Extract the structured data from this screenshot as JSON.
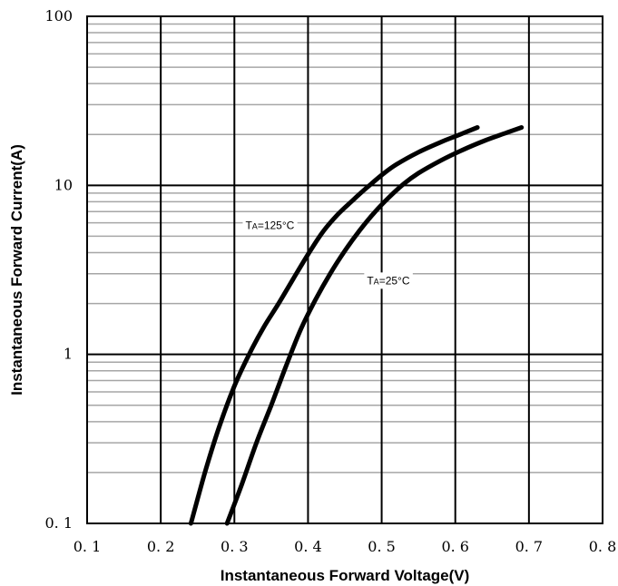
{
  "chart_data": {
    "type": "line",
    "title": "",
    "xlabel": "Instantaneous Forward Voltage(V)",
    "ylabel": "Instantaneous Forward Current(A)",
    "xlim": [
      0.1,
      0.8
    ],
    "ylim": [
      0.1,
      100
    ],
    "y_scale": "log",
    "grid": true,
    "x_tick_labels": [
      "0. 1",
      "0. 2",
      "0. 3",
      "0. 4",
      "0. 5",
      "0. 6",
      "0. 7",
      "0. 8"
    ],
    "x_ticks": [
      0.1,
      0.2,
      0.3,
      0.4,
      0.5,
      0.6,
      0.7,
      0.8
    ],
    "y_tick_labels": [
      "0. 1",
      "1",
      "10",
      "100"
    ],
    "y_ticks": [
      0.1,
      1,
      10,
      100
    ],
    "series": [
      {
        "name": "TA=125°C",
        "label_main": "T",
        "label_sub": "A",
        "label_rest": "=125°C",
        "x": [
          0.241,
          0.26,
          0.28,
          0.3,
          0.32,
          0.34,
          0.36,
          0.38,
          0.4,
          0.42,
          0.44,
          0.46,
          0.48,
          0.5,
          0.52,
          0.55,
          0.58,
          0.6,
          0.63
        ],
        "y": [
          0.1,
          0.2,
          0.38,
          0.65,
          1.0,
          1.45,
          2.0,
          2.8,
          3.9,
          5.3,
          6.7,
          8.1,
          9.7,
          11.5,
          13.3,
          15.7,
          18.0,
          19.5,
          22.0
        ]
      },
      {
        "name": "TA=25°C",
        "label_main": "T",
        "label_sub": "A",
        "label_rest": "=25°C",
        "x": [
          0.29,
          0.31,
          0.33,
          0.35,
          0.37,
          0.39,
          0.41,
          0.43,
          0.45,
          0.47,
          0.49,
          0.51,
          0.53,
          0.55,
          0.58,
          0.61,
          0.64,
          0.67,
          0.69
        ],
        "y": [
          0.1,
          0.17,
          0.3,
          0.5,
          0.85,
          1.4,
          2.1,
          3.0,
          4.1,
          5.4,
          6.9,
          8.5,
          10.2,
          11.8,
          14.0,
          16.2,
          18.4,
          20.5,
          22.0
        ]
      }
    ],
    "colors": {
      "line": "#000000",
      "grid_major": "#000000",
      "grid_minor": "#a6a6a6",
      "background": "#ffffff"
    }
  }
}
